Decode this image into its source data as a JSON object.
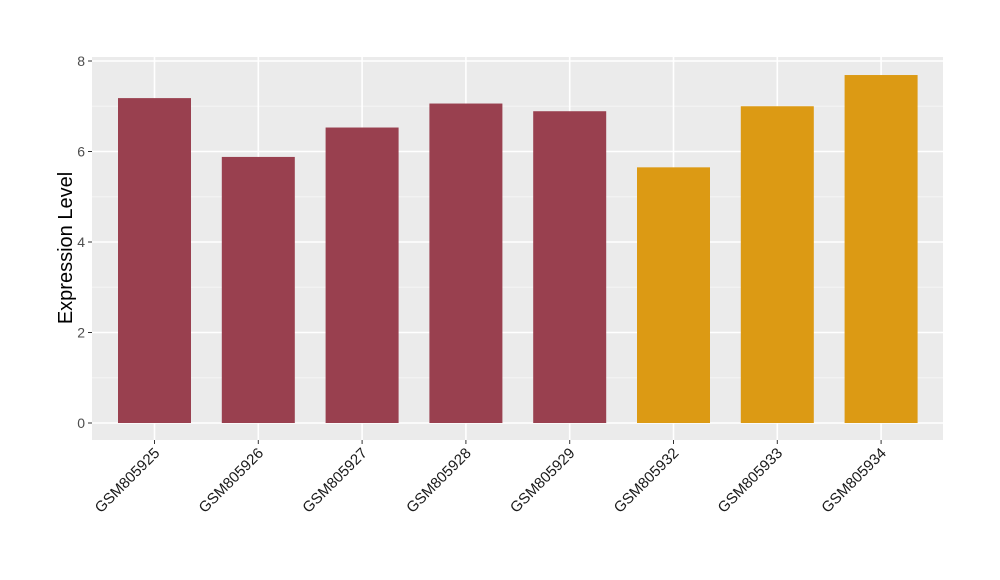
{
  "colors": {
    "panel_background": "#ebebeb",
    "grid_major": "#ffffff",
    "grid_minor": "#f5f5f5",
    "group_a": "#99404f",
    "group_b": "#dc9a14",
    "tick_mark": "#333333"
  },
  "chart_data": {
    "type": "bar",
    "title": "",
    "xlabel": "",
    "ylabel": "Expression Level",
    "ylim": [
      0,
      8
    ],
    "yticks": [
      0,
      2,
      4,
      6,
      8
    ],
    "grid": true,
    "legend": "none",
    "categories": [
      "GSM805925",
      "GSM805926",
      "GSM805927",
      "GSM805928",
      "GSM805929",
      "GSM805932",
      "GSM805933",
      "GSM805934"
    ],
    "values": [
      7.18,
      5.88,
      6.53,
      7.06,
      6.89,
      5.65,
      7.0,
      7.69
    ],
    "bar_colors": [
      "#99404f",
      "#99404f",
      "#99404f",
      "#99404f",
      "#99404f",
      "#dc9a14",
      "#dc9a14",
      "#dc9a14"
    ]
  }
}
